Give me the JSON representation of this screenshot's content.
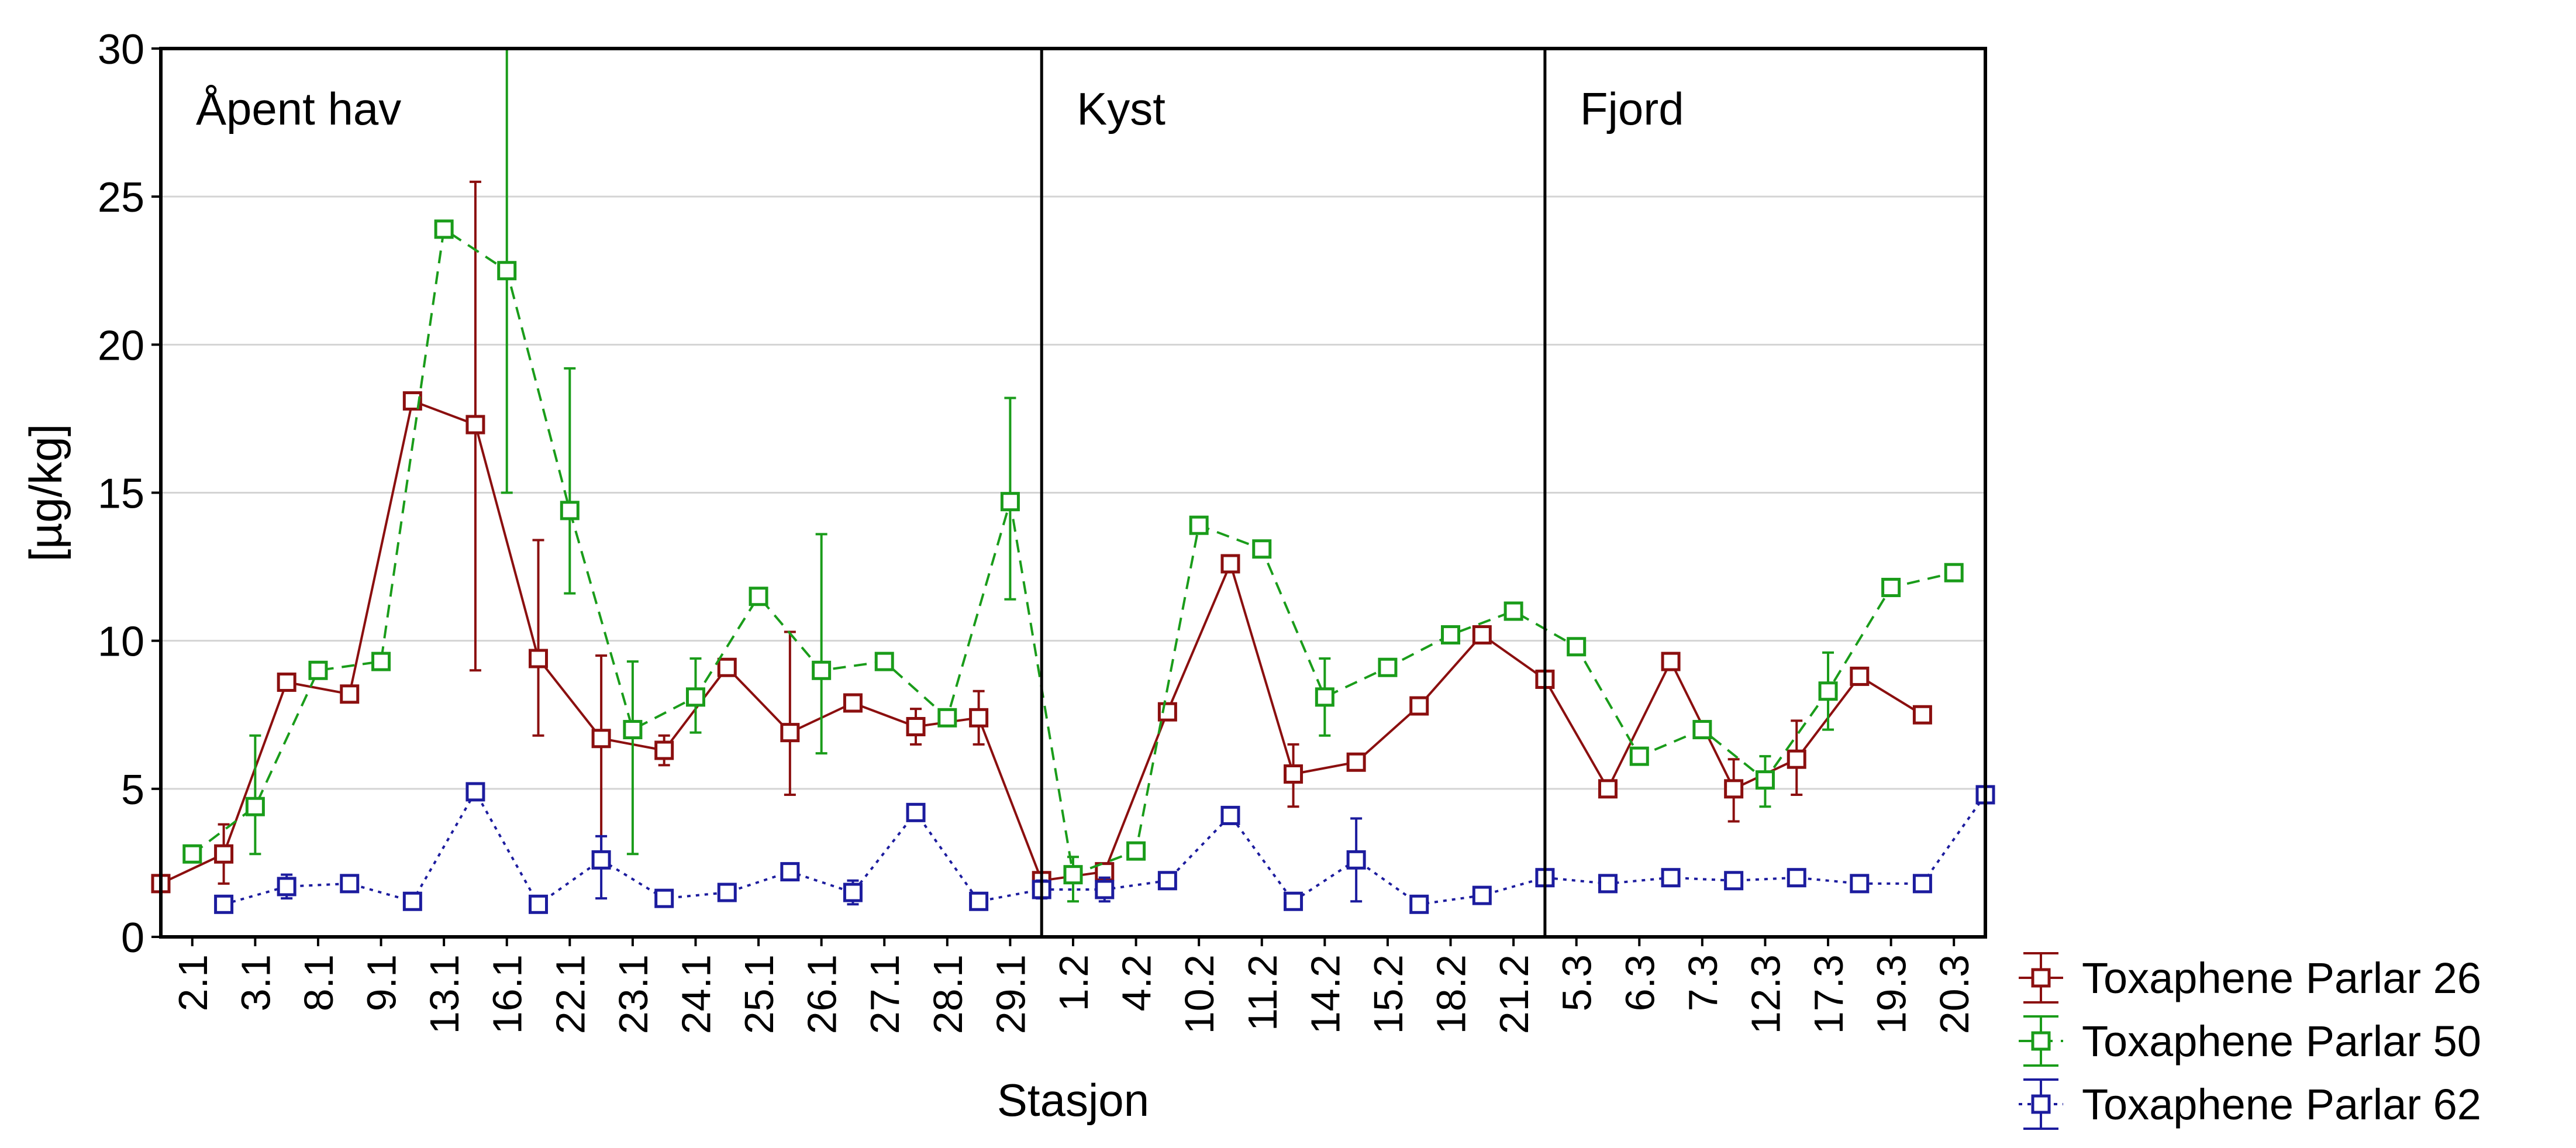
{
  "chart_data": {
    "type": "line",
    "xlabel": "Stasjon",
    "ylabel": "[µg/kg]",
    "ylim": [
      0,
      30
    ],
    "yticks": [
      0,
      5,
      10,
      15,
      20,
      25,
      30
    ],
    "grid": "horizontal",
    "legend_position": "right-bottom",
    "categories": [
      "2.1",
      "3.1",
      "8.1",
      "9.1",
      "13.1",
      "16.1",
      "22.1",
      "23.1",
      "24.1",
      "25.1",
      "26.1",
      "27.1",
      "28.1",
      "29.1",
      "1.2",
      "4.2",
      "10.2",
      "11.2",
      "14.2",
      "15.2",
      "18.2",
      "21.2",
      "5.3",
      "6.3",
      "7.3",
      "12.3",
      "17.3",
      "19.3",
      "20.3"
    ],
    "regions": [
      {
        "label": "Åpent hav",
        "start": 0
      },
      {
        "label": "Kyst",
        "start": 14
      },
      {
        "label": "Fjord",
        "start": 22
      }
    ],
    "series": [
      {
        "name": "Toxaphene Parlar 26",
        "color": "#8b0f0f",
        "line_style": "solid",
        "offset": -0.5,
        "points": [
          {
            "y": 1.8
          },
          {
            "y": 2.8,
            "lo": 1.8,
            "hi": 3.8
          },
          {
            "y": 8.6
          },
          {
            "y": 8.2
          },
          {
            "y": 18.1
          },
          {
            "y": 17.3,
            "lo": 9.0,
            "hi": 25.5
          },
          {
            "y": 9.4,
            "lo": 6.8,
            "hi": 13.4
          },
          {
            "y": 6.7,
            "lo": 2.8,
            "hi": 9.5
          },
          {
            "y": 6.3,
            "lo": 5.8,
            "hi": 6.8
          },
          {
            "y": 9.1
          },
          {
            "y": 6.9,
            "lo": 4.8,
            "hi": 10.3
          },
          {
            "y": 7.9
          },
          {
            "y": 7.1,
            "lo": 6.5,
            "hi": 7.7
          },
          {
            "y": 7.4,
            "lo": 6.5,
            "hi": 8.3
          },
          {
            "y": 1.9
          },
          {
            "y": 2.2
          },
          {
            "y": 7.6
          },
          {
            "y": 12.6
          },
          {
            "y": 5.5,
            "lo": 4.4,
            "hi": 6.5
          },
          {
            "y": 5.9
          },
          {
            "y": 7.8
          },
          {
            "y": 10.2
          },
          {
            "y": 8.7
          },
          {
            "y": 5.0
          },
          {
            "y": 9.3
          },
          {
            "y": 5.0,
            "lo": 3.9,
            "hi": 6.0
          },
          {
            "y": 6.0,
            "lo": 4.8,
            "hi": 7.3
          },
          {
            "y": 8.8
          },
          {
            "y": 7.5
          }
        ]
      },
      {
        "name": "Toxaphene Parlar 50",
        "color": "#1a9c1a",
        "line_style": "dashed",
        "offset": 0,
        "points": [
          {
            "y": 2.8
          },
          {
            "y": 4.4,
            "lo": 2.8,
            "hi": 6.8
          },
          {
            "y": 9.0
          },
          {
            "y": 9.3
          },
          {
            "y": 23.9
          },
          {
            "y": 22.5,
            "lo": 15.0,
            "hi": 30.0
          },
          {
            "y": 14.4,
            "lo": 11.6,
            "hi": 19.2
          },
          {
            "y": 7.0,
            "lo": 2.8,
            "hi": 9.3
          },
          {
            "y": 8.1,
            "lo": 6.9,
            "hi": 9.4
          },
          {
            "y": 11.5
          },
          {
            "y": 9.0,
            "lo": 6.2,
            "hi": 13.6
          },
          {
            "y": 9.3
          },
          {
            "y": 7.4
          },
          {
            "y": 14.7,
            "lo": 11.4,
            "hi": 18.2
          },
          {
            "y": 2.1,
            "lo": 1.2,
            "hi": 2.7
          },
          {
            "y": 2.9
          },
          {
            "y": 13.9
          },
          {
            "y": 13.1
          },
          {
            "y": 8.1,
            "lo": 6.8,
            "hi": 9.4
          },
          {
            "y": 9.1
          },
          {
            "y": 10.2
          },
          {
            "y": 11.0
          },
          {
            "y": 9.8
          },
          {
            "y": 6.1
          },
          {
            "y": 7.0
          },
          {
            "y": 5.3,
            "lo": 4.4,
            "hi": 6.1
          },
          {
            "y": 8.3,
            "lo": 7.0,
            "hi": 9.6
          },
          {
            "y": 11.8
          },
          {
            "y": 12.3
          }
        ]
      },
      {
        "name": "Toxaphene Parlar 62",
        "color": "#1c1c9e",
        "line_style": "dotted",
        "offset": 0.5,
        "points": [
          {
            "y": 1.1
          },
          {
            "y": 1.7,
            "lo": 1.3,
            "hi": 2.1
          },
          {
            "y": 1.8
          },
          {
            "y": 1.2
          },
          {
            "y": 4.9
          },
          {
            "y": 1.1
          },
          {
            "y": 2.6,
            "lo": 1.3,
            "hi": 3.4
          },
          {
            "y": 1.3
          },
          {
            "y": 1.5
          },
          {
            "y": 2.2
          },
          {
            "y": 1.5,
            "lo": 1.1,
            "hi": 1.9
          },
          {
            "y": 4.2
          },
          {
            "y": 1.2
          },
          {
            "y": 1.6,
            "lo": 1.3,
            "hi": 1.9
          },
          {
            "y": 1.6,
            "lo": 1.2,
            "hi": 2.0
          },
          {
            "y": 1.9
          },
          {
            "y": 4.1
          },
          {
            "y": 1.2
          },
          {
            "y": 2.6,
            "lo": 1.2,
            "hi": 4.0
          },
          {
            "y": 1.1
          },
          {
            "y": 1.4
          },
          {
            "y": 2.0
          },
          {
            "y": 1.8
          },
          {
            "y": 2.0
          },
          {
            "y": 1.9
          },
          {
            "y": 2.0
          },
          {
            "y": 1.8
          },
          {
            "y": 1.8
          },
          {
            "y": 4.8
          }
        ]
      }
    ]
  }
}
